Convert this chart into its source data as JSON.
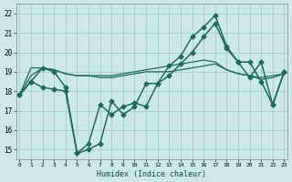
{
  "xlabel": "Humidex (Indice chaleur)",
  "bg_color": "#cce8e8",
  "grid_color": "#aacccc",
  "line_color": "#1f6b5a",
  "xlim": [
    -0.3,
    23.3
  ],
  "ylim": [
    14.5,
    22.5
  ],
  "yticks": [
    15,
    16,
    17,
    18,
    19,
    20,
    21,
    22
  ],
  "xticks": [
    0,
    1,
    2,
    3,
    4,
    5,
    6,
    7,
    8,
    9,
    10,
    11,
    12,
    13,
    14,
    15,
    16,
    17,
    18,
    19,
    20,
    21,
    22,
    23
  ],
  "series": [
    {
      "x": [
        0,
        1,
        2,
        3,
        4,
        5,
        6,
        7,
        8,
        9,
        10,
        11,
        12,
        13,
        14,
        15,
        16,
        17,
        18,
        19,
        20,
        21,
        22,
        23
      ],
      "y": [
        17.8,
        18.5,
        19.2,
        19.0,
        18.2,
        14.8,
        15.0,
        15.3,
        17.5,
        16.8,
        17.2,
        18.4,
        18.4,
        19.3,
        19.8,
        20.8,
        21.3,
        21.9,
        20.3,
        19.5,
        19.5,
        18.5,
        17.3,
        19.0
      ],
      "marker": "D",
      "ms": 2.5,
      "lw": 1.1,
      "dashed": false
    },
    {
      "x": [
        0,
        1,
        2,
        3,
        4,
        5,
        6,
        7,
        8,
        9,
        10,
        11,
        12,
        13,
        14,
        15,
        16,
        17,
        18,
        19,
        20,
        21,
        22,
        23
      ],
      "y": [
        17.8,
        18.8,
        19.2,
        19.1,
        18.9,
        18.8,
        18.8,
        18.7,
        18.7,
        18.8,
        18.9,
        19.0,
        19.0,
        19.0,
        19.1,
        19.2,
        19.3,
        19.4,
        19.1,
        18.9,
        18.8,
        18.6,
        18.7,
        18.9
      ],
      "marker": null,
      "ms": 0,
      "lw": 0.9,
      "dashed": false
    },
    {
      "x": [
        0,
        1,
        2,
        3,
        4,
        5,
        6,
        7,
        8,
        9,
        10,
        11,
        12,
        13,
        14,
        15,
        16,
        17,
        18,
        19,
        20,
        21,
        22,
        23
      ],
      "y": [
        17.8,
        19.2,
        19.2,
        19.1,
        18.9,
        18.8,
        18.8,
        18.8,
        18.8,
        18.9,
        19.0,
        19.1,
        19.2,
        19.3,
        19.4,
        19.5,
        19.6,
        19.5,
        19.1,
        18.9,
        18.8,
        18.7,
        18.8,
        18.9
      ],
      "marker": null,
      "ms": 0,
      "lw": 0.9,
      "dashed": false
    },
    {
      "x": [
        0,
        1,
        2,
        3,
        4,
        5,
        6,
        7,
        8,
        9,
        10,
        11,
        12,
        13,
        14,
        15,
        16,
        17,
        18,
        19,
        20,
        21,
        22,
        23
      ],
      "y": [
        17.8,
        18.5,
        18.2,
        18.1,
        18.0,
        14.8,
        15.3,
        17.3,
        16.8,
        17.2,
        17.4,
        17.2,
        18.4,
        18.8,
        19.4,
        20.0,
        20.8,
        21.5,
        20.2,
        19.5,
        18.7,
        19.5,
        17.3,
        19.0
      ],
      "marker": "D",
      "ms": 2.5,
      "lw": 1.1,
      "dashed": false
    }
  ]
}
